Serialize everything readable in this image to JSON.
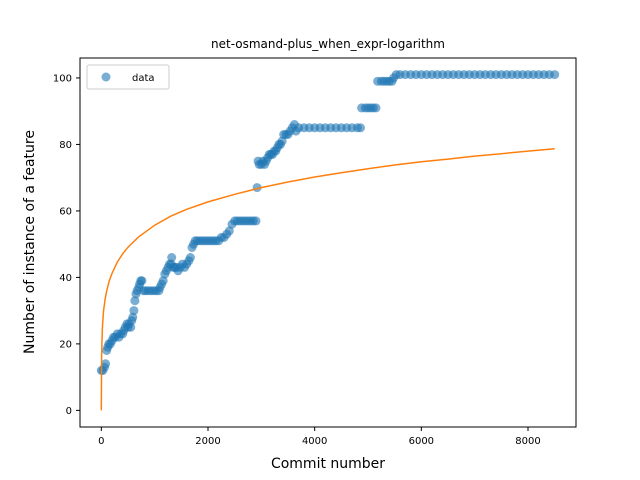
{
  "chart_data": {
    "type": "scatter",
    "title": "net-osmand-plus_when_expr-logarithm",
    "xlabel": "Commit number",
    "ylabel": "Number of instance of a feature",
    "xlim": [
      -400,
      8900
    ],
    "ylim": [
      -5,
      106
    ],
    "xticks": [
      0,
      2000,
      4000,
      6000,
      8000
    ],
    "yticks": [
      0,
      20,
      40,
      60,
      80,
      100
    ],
    "grid": false,
    "legend": {
      "placement": "top-left",
      "entries": [
        "data"
      ]
    },
    "colors": {
      "data": "#1f77b4",
      "fit": "#ff7f0e"
    },
    "series": [
      {
        "name": "data",
        "kind": "scatter",
        "points": [
          [
            0,
            12
          ],
          [
            30,
            12
          ],
          [
            60,
            13
          ],
          [
            80,
            14
          ],
          [
            100,
            18
          ],
          [
            120,
            19
          ],
          [
            140,
            20
          ],
          [
            170,
            20
          ],
          [
            200,
            21
          ],
          [
            230,
            22
          ],
          [
            260,
            22
          ],
          [
            300,
            23
          ],
          [
            330,
            22
          ],
          [
            360,
            23
          ],
          [
            400,
            23
          ],
          [
            420,
            24
          ],
          [
            450,
            25
          ],
          [
            480,
            26
          ],
          [
            500,
            25
          ],
          [
            520,
            26
          ],
          [
            550,
            25
          ],
          [
            570,
            27
          ],
          [
            590,
            28
          ],
          [
            610,
            30
          ],
          [
            630,
            33
          ],
          [
            650,
            35
          ],
          [
            670,
            36
          ],
          [
            700,
            37
          ],
          [
            720,
            38
          ],
          [
            740,
            39
          ],
          [
            760,
            39
          ],
          [
            790,
            36
          ],
          [
            830,
            36
          ],
          [
            880,
            36
          ],
          [
            930,
            36
          ],
          [
            980,
            36
          ],
          [
            1030,
            36
          ],
          [
            1080,
            36
          ],
          [
            1100,
            37
          ],
          [
            1130,
            38
          ],
          [
            1160,
            39
          ],
          [
            1190,
            41
          ],
          [
            1220,
            42
          ],
          [
            1250,
            43
          ],
          [
            1280,
            44
          ],
          [
            1310,
            44
          ],
          [
            1320,
            46
          ],
          [
            1350,
            43
          ],
          [
            1380,
            43
          ],
          [
            1410,
            43
          ],
          [
            1440,
            42
          ],
          [
            1480,
            43
          ],
          [
            1520,
            44
          ],
          [
            1560,
            43
          ],
          [
            1600,
            44
          ],
          [
            1640,
            45
          ],
          [
            1670,
            46
          ],
          [
            1700,
            49
          ],
          [
            1730,
            50
          ],
          [
            1760,
            51
          ],
          [
            1800,
            51
          ],
          [
            1850,
            51
          ],
          [
            1900,
            51
          ],
          [
            1950,
            51
          ],
          [
            2000,
            51
          ],
          [
            2050,
            51
          ],
          [
            2100,
            51
          ],
          [
            2150,
            51
          ],
          [
            2200,
            51
          ],
          [
            2250,
            52
          ],
          [
            2300,
            52
          ],
          [
            2350,
            53
          ],
          [
            2400,
            54
          ],
          [
            2450,
            56
          ],
          [
            2500,
            57
          ],
          [
            2550,
            57
          ],
          [
            2600,
            57
          ],
          [
            2650,
            57
          ],
          [
            2700,
            57
          ],
          [
            2750,
            57
          ],
          [
            2800,
            57
          ],
          [
            2850,
            57
          ],
          [
            2900,
            57
          ],
          [
            2920,
            67
          ],
          [
            2940,
            75
          ],
          [
            2960,
            74
          ],
          [
            3000,
            74
          ],
          [
            3030,
            75
          ],
          [
            3060,
            74
          ],
          [
            3090,
            75
          ],
          [
            3120,
            76
          ],
          [
            3150,
            77
          ],
          [
            3180,
            77
          ],
          [
            3210,
            77
          ],
          [
            3240,
            78
          ],
          [
            3270,
            78
          ],
          [
            3300,
            79
          ],
          [
            3330,
            80
          ],
          [
            3360,
            80
          ],
          [
            3390,
            81
          ],
          [
            3420,
            83
          ],
          [
            3460,
            83
          ],
          [
            3500,
            83
          ],
          [
            3540,
            84
          ],
          [
            3580,
            85
          ],
          [
            3620,
            86
          ],
          [
            3650,
            84
          ],
          [
            3700,
            85
          ],
          [
            3800,
            85
          ],
          [
            3900,
            85
          ],
          [
            4000,
            85
          ],
          [
            4100,
            85
          ],
          [
            4200,
            85
          ],
          [
            4300,
            85
          ],
          [
            4400,
            85
          ],
          [
            4500,
            85
          ],
          [
            4600,
            85
          ],
          [
            4700,
            85
          ],
          [
            4800,
            85
          ],
          [
            4860,
            85
          ],
          [
            4880,
            91
          ],
          [
            4950,
            91
          ],
          [
            5000,
            91
          ],
          [
            5050,
            91
          ],
          [
            5100,
            91
          ],
          [
            5150,
            91
          ],
          [
            5180,
            99
          ],
          [
            5250,
            99
          ],
          [
            5300,
            99
          ],
          [
            5350,
            99
          ],
          [
            5400,
            99
          ],
          [
            5450,
            99
          ],
          [
            5480,
            100
          ],
          [
            5530,
            101
          ],
          [
            5600,
            101
          ],
          [
            5700,
            101
          ],
          [
            5800,
            101
          ],
          [
            5900,
            101
          ],
          [
            6000,
            101
          ],
          [
            6100,
            101
          ],
          [
            6200,
            101
          ],
          [
            6300,
            101
          ],
          [
            6400,
            101
          ],
          [
            6500,
            101
          ],
          [
            6600,
            101
          ],
          [
            6700,
            101
          ],
          [
            6800,
            101
          ],
          [
            6900,
            101
          ],
          [
            7000,
            101
          ],
          [
            7100,
            101
          ],
          [
            7200,
            101
          ],
          [
            7300,
            101
          ],
          [
            7400,
            101
          ],
          [
            7500,
            101
          ],
          [
            7600,
            101
          ],
          [
            7700,
            101
          ],
          [
            7800,
            101
          ],
          [
            7900,
            101
          ],
          [
            8000,
            101
          ],
          [
            8100,
            101
          ],
          [
            8200,
            101
          ],
          [
            8300,
            101
          ],
          [
            8400,
            101
          ],
          [
            8500,
            101
          ]
        ]
      },
      {
        "name": "",
        "kind": "line",
        "points": [
          [
            0,
            0
          ],
          [
            5,
            15.8
          ],
          [
            10,
            19.8
          ],
          [
            20,
            25.0
          ],
          [
            40,
            29.8
          ],
          [
            70,
            33.4
          ],
          [
            100,
            35.9
          ],
          [
            150,
            39.0
          ],
          [
            200,
            41.2
          ],
          [
            300,
            44.6
          ],
          [
            400,
            47.1
          ],
          [
            500,
            49.1
          ],
          [
            700,
            52.2
          ],
          [
            1000,
            55.7
          ],
          [
            1300,
            58.4
          ],
          [
            1600,
            60.5
          ],
          [
            2000,
            62.7
          ],
          [
            2500,
            65.0
          ],
          [
            3000,
            67.0
          ],
          [
            3500,
            68.7
          ],
          [
            4000,
            70.2
          ],
          [
            4500,
            71.5
          ],
          [
            5000,
            72.7
          ],
          [
            5500,
            73.8
          ],
          [
            6000,
            74.8
          ],
          [
            6500,
            75.6
          ],
          [
            7000,
            76.5
          ],
          [
            7500,
            77.2
          ],
          [
            8000,
            78.0
          ],
          [
            8500,
            78.7
          ]
        ]
      }
    ]
  }
}
